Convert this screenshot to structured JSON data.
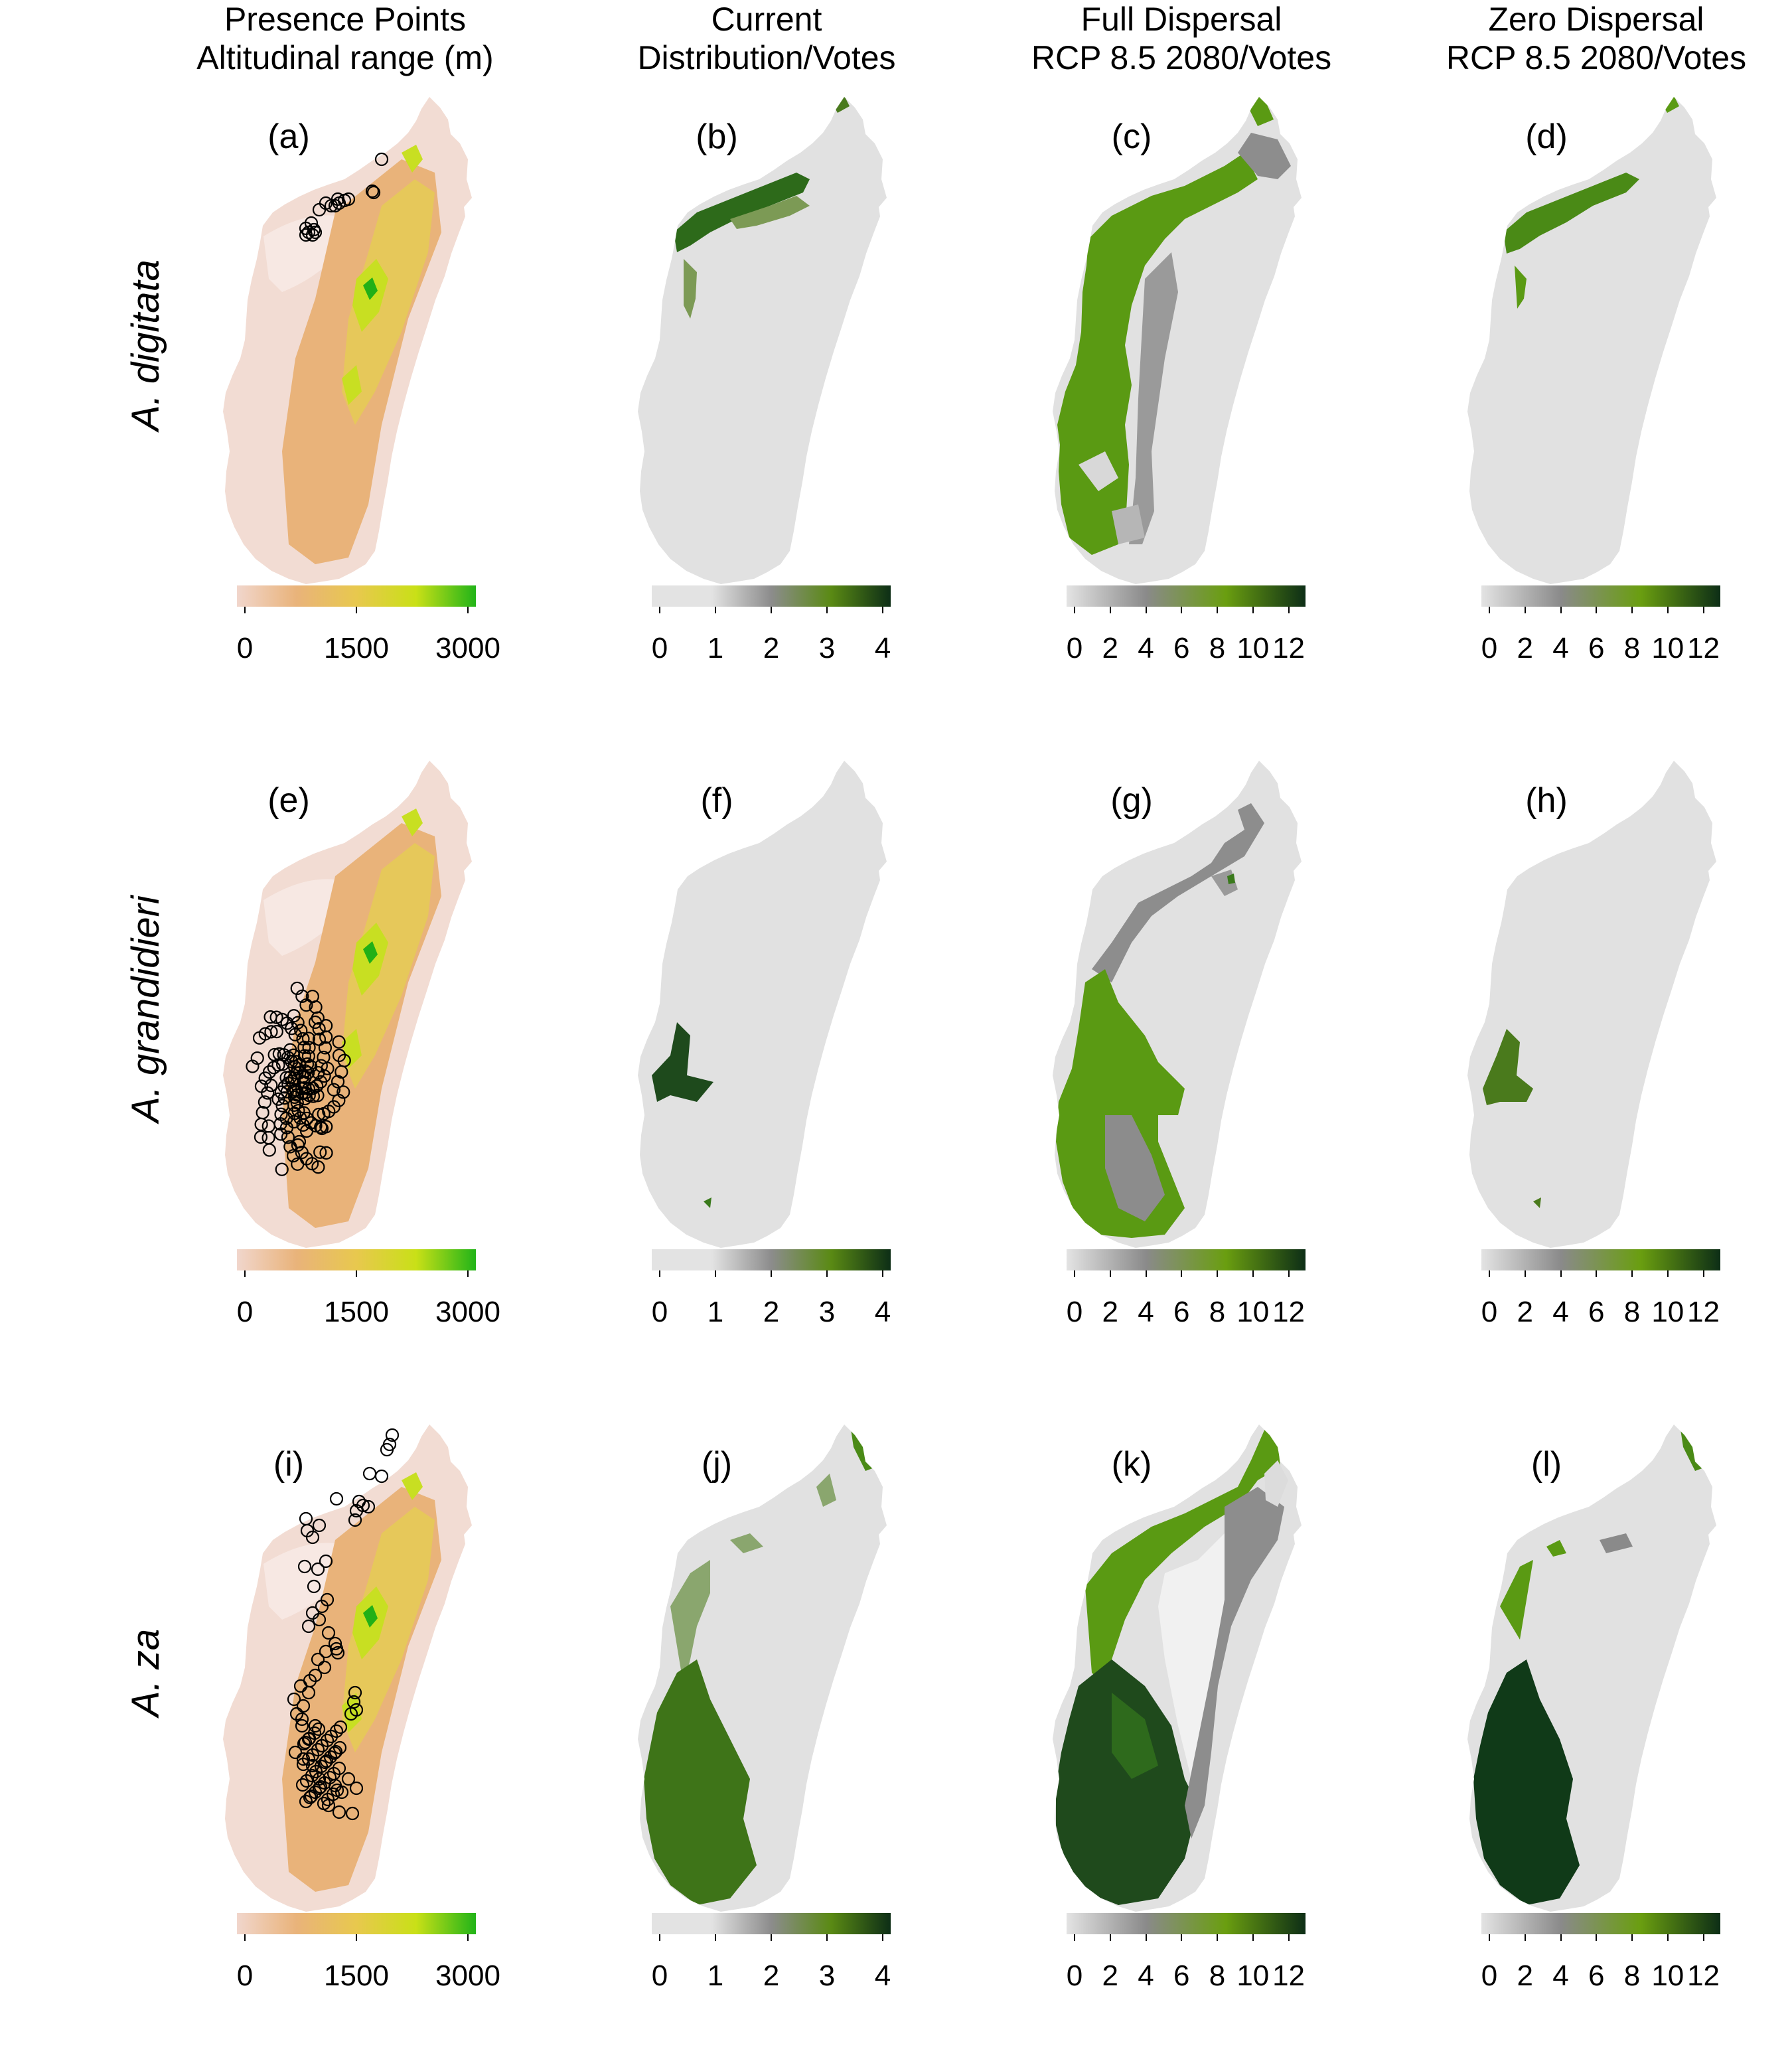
{
  "columns": [
    {
      "title_line1": "Presence Points",
      "title_line2": "Altitudinal range (m)",
      "legend_type": "altitude"
    },
    {
      "title_line1": "Current",
      "title_line2": "Distribution/Votes",
      "legend_type": "votes4"
    },
    {
      "title_line1": "Full Dispersal",
      "title_line2": "RCP 8.5 2080/Votes",
      "legend_type": "votes12"
    },
    {
      "title_line1": "Zero Dispersal",
      "title_line2": "RCP 8.5 2080/Votes",
      "legend_type": "votes12"
    }
  ],
  "rows": [
    {
      "species": "A. digitata",
      "panels": [
        "(a)",
        "(b)",
        "(c)",
        "(d)"
      ]
    },
    {
      "species": "A. grandidieri",
      "panels": [
        "(e)",
        "(f)",
        "(g)",
        "(h)"
      ]
    },
    {
      "species": "A. za",
      "panels": [
        "(i)",
        "(j)",
        "(k)",
        "(l)"
      ]
    }
  ],
  "legends": {
    "altitude": {
      "ticks": [
        "0",
        "1500",
        "3000"
      ],
      "tick_values": [
        0,
        1500,
        3000
      ],
      "range": [
        0,
        3000
      ],
      "colors": [
        "#f1d6cc",
        "#e9b37a",
        "#e8c84e",
        "#c9e017",
        "#22b418"
      ]
    },
    "votes4": {
      "ticks": [
        "0",
        "1",
        "2",
        "3",
        "4"
      ],
      "tick_values": [
        0,
        1,
        2,
        3,
        4
      ],
      "range": [
        0,
        4
      ],
      "colors": [
        "#e3e3e3",
        "#e3e3e3",
        "#8c8c8c",
        "#5a8a14",
        "#0d2e16"
      ]
    },
    "votes12": {
      "ticks": [
        "0",
        "2",
        "4",
        "6",
        "8",
        "10",
        "12"
      ],
      "tick_values": [
        0,
        2,
        4,
        6,
        8,
        10,
        12
      ],
      "range": [
        0,
        12.5
      ],
      "colors": [
        "#e3e3e3",
        "#8a8a8a",
        "#6a9e10",
        "#0d2e16"
      ]
    }
  },
  "colors": {
    "altitude_low": "#f2dcd3",
    "altitude_mid": "#e9b37a",
    "altitude_high": "#c8df22",
    "altitude_peak": "#21b017",
    "votes_zero": "#e1e1e1",
    "votes_low_grey": "#8d8d8d",
    "votes_mid_green": "#5a9a13",
    "votes_high_green": "#0d2e16",
    "presence_point": "#000000"
  }
}
